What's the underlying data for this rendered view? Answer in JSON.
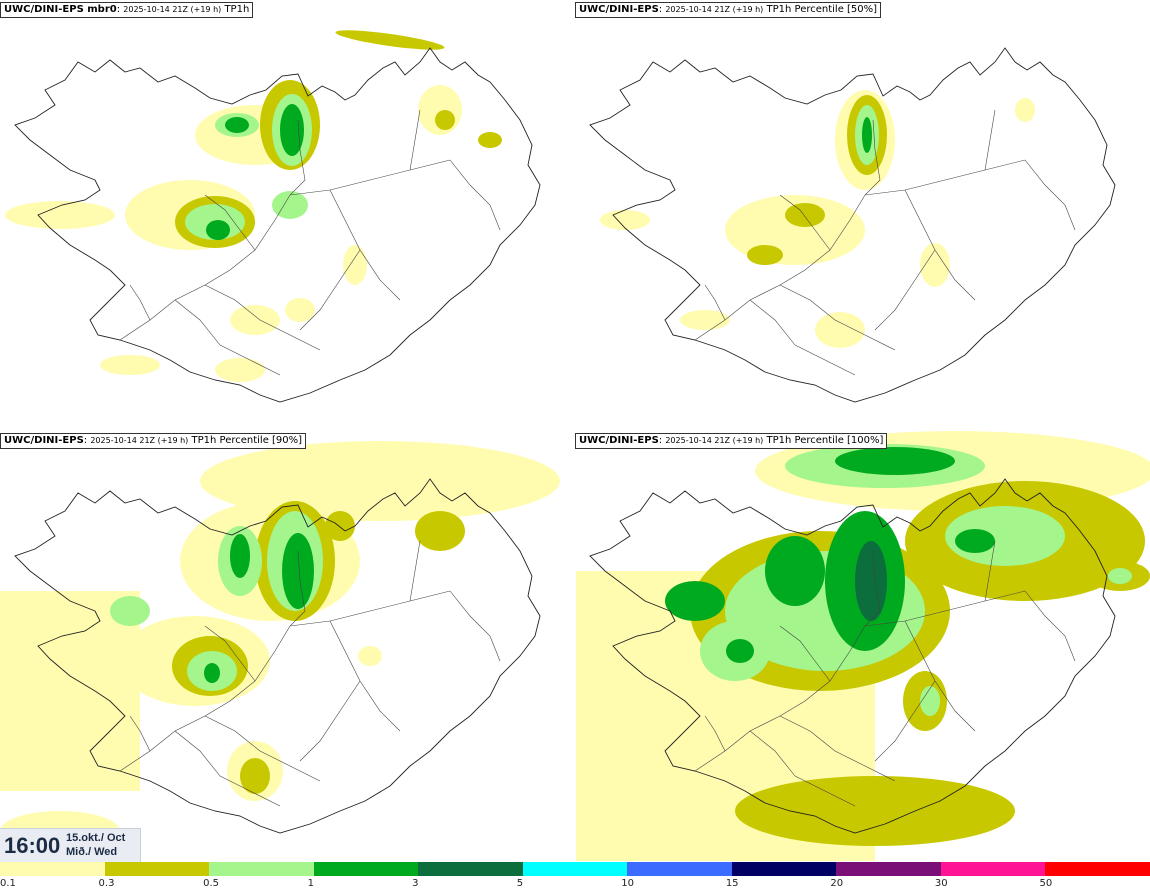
{
  "panels": [
    {
      "model": "UWC/DINI-EPS mbr0",
      "run": "2025-10-14 21Z (+19 h)",
      "field": "TP1h"
    },
    {
      "model": "UWC/DINI-EPS",
      "run": "2025-10-14 21Z (+19 h)",
      "field": "TP1h Percentile [50%]"
    },
    {
      "model": "UWC/DINI-EPS",
      "run": "2025-10-14 21Z (+19 h)",
      "field": "TP1h Percentile [90%]"
    },
    {
      "model": "UWC/DINI-EPS",
      "run": "2025-10-14 21Z (+19 h)",
      "field": "TP1h Percentile [100%]"
    }
  ],
  "valid_time": {
    "time": "16:00",
    "date": "15.okt./ Oct",
    "weekday": "Mið./ Wed"
  },
  "legend": {
    "labels": [
      "0.1",
      "0.3",
      "0.5",
      "1",
      "3",
      "5",
      "10",
      "15",
      "20",
      "30",
      "50"
    ],
    "colors": [
      "#fffcb0",
      "#c8c800",
      "#a4f58c",
      "#00aa1e",
      "#0b6e3c",
      "#00ffff",
      "#3c6cff",
      "#000064",
      "#7a0f78",
      "#ff1493",
      "#ff0000"
    ]
  }
}
